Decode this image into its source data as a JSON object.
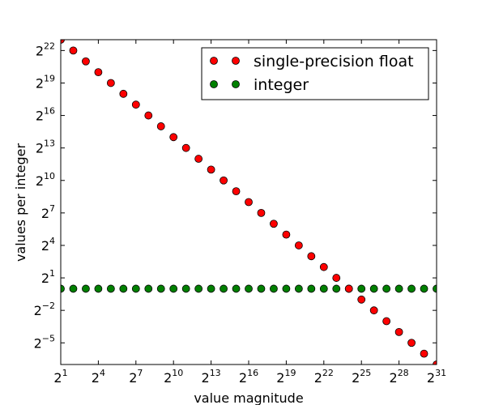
{
  "chart_data": {
    "type": "scatter",
    "xlabel": "value magnitude",
    "ylabel": "values per integer",
    "xscale": "log2",
    "yscale": "log2",
    "xlim_exponent": [
      1,
      31
    ],
    "ylim_exponent": [
      -7,
      23
    ],
    "xticks_exponent": [
      1,
      4,
      7,
      10,
      13,
      16,
      19,
      22,
      25,
      28,
      31
    ],
    "yticks_exponent": [
      -5,
      -2,
      1,
      4,
      7,
      10,
      13,
      16,
      19,
      22
    ],
    "tick_base": "2",
    "grid": false,
    "legend_position": "top-right",
    "series": [
      {
        "name": "single-precision float",
        "color": "#ff0000",
        "x_exponent": [
          1,
          2,
          3,
          4,
          5,
          6,
          7,
          8,
          9,
          10,
          11,
          12,
          13,
          14,
          15,
          16,
          17,
          18,
          19,
          20,
          21,
          22,
          23,
          24,
          25,
          26,
          27,
          28,
          29,
          30,
          31
        ],
        "y_exponent": [
          23,
          22,
          21,
          20,
          19,
          18,
          17,
          16,
          15,
          14,
          13,
          12,
          11,
          10,
          9,
          8,
          7,
          6,
          5,
          4,
          3,
          2,
          1,
          0,
          -1,
          -2,
          -3,
          -4,
          -5,
          -6,
          -7
        ]
      },
      {
        "name": "integer",
        "color": "#008000",
        "x_exponent": [
          1,
          2,
          3,
          4,
          5,
          6,
          7,
          8,
          9,
          10,
          11,
          12,
          13,
          14,
          15,
          16,
          17,
          18,
          19,
          20,
          21,
          22,
          23,
          24,
          25,
          26,
          27,
          28,
          29,
          30,
          31
        ],
        "y_exponent": [
          0,
          0,
          0,
          0,
          0,
          0,
          0,
          0,
          0,
          0,
          0,
          0,
          0,
          0,
          0,
          0,
          0,
          0,
          0,
          0,
          0,
          0,
          0,
          0,
          0,
          0,
          0,
          0,
          0,
          0,
          0
        ]
      }
    ]
  }
}
